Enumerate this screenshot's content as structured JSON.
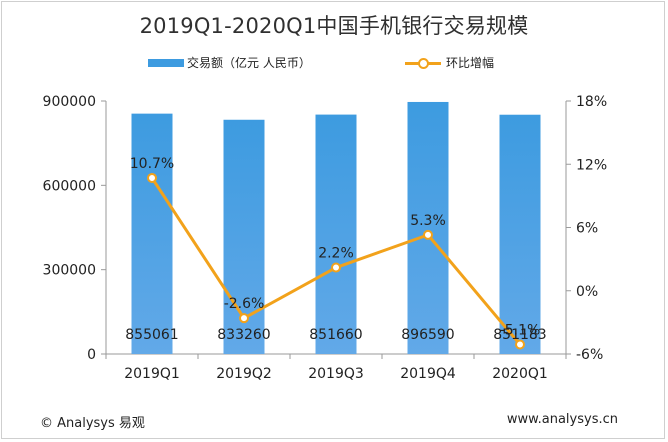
{
  "chart_data": {
    "type": "bar",
    "title": "2019Q1-2020Q1中国手机银行交易规模",
    "categories": [
      "2019Q1",
      "2019Q2",
      "2019Q3",
      "2019Q4",
      "2020Q1"
    ],
    "series": [
      {
        "name": "交易额（亿元 人民币）",
        "type": "bar",
        "axis": "left",
        "values": [
          855061,
          833260,
          851660,
          896590,
          851183
        ],
        "data_labels": [
          "855061",
          "833260",
          "851660",
          "896590",
          "851183"
        ]
      },
      {
        "name": "环比增幅",
        "type": "line",
        "axis": "right",
        "values": [
          10.7,
          -2.6,
          2.2,
          5.3,
          -5.1
        ],
        "data_labels": [
          "10.7%",
          "-2.6%",
          "2.2%",
          "5.3%",
          "-5.1%"
        ]
      }
    ],
    "y_left": {
      "lim": [
        0,
        900000
      ],
      "ticks": [
        "0",
        "300000",
        "600000",
        "900000"
      ]
    },
    "y_right": {
      "lim": [
        -6,
        18
      ],
      "ticks": [
        "-6%",
        "0%",
        "6%",
        "12%",
        "18%"
      ]
    },
    "legend_position": "top",
    "grid": false,
    "colors": {
      "bar": "#3d9be0",
      "line": "#f2a21b"
    }
  },
  "footer": {
    "left": "© Analysys 易观",
    "right": "www.analysys.cn"
  }
}
